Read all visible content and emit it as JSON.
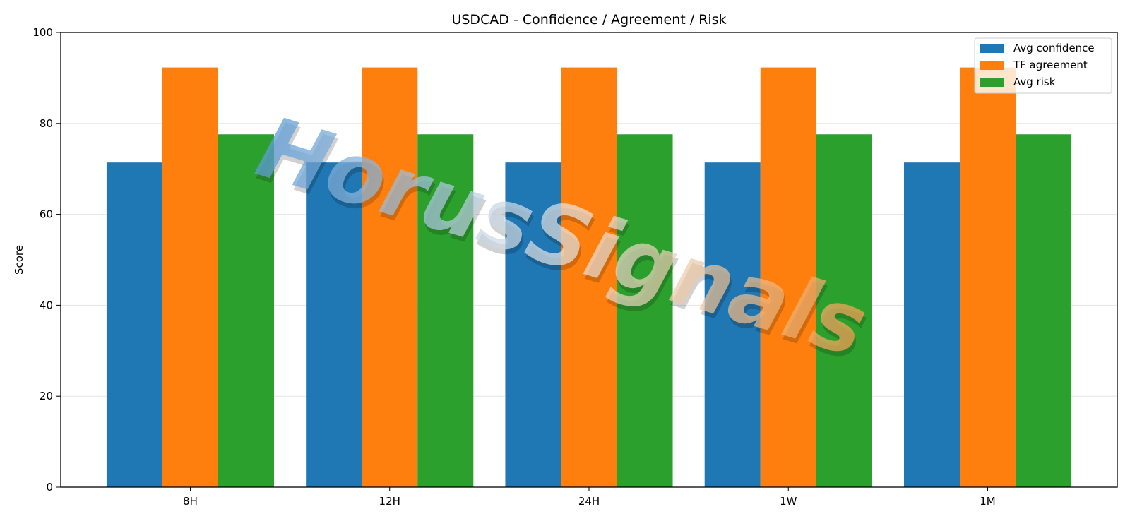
{
  "chart_data": {
    "type": "bar",
    "title": "USDCAD - Confidence / Agreement / Risk",
    "xlabel": "",
    "ylabel": "Score",
    "ylim": [
      0,
      100
    ],
    "yticks": [
      0,
      20,
      40,
      60,
      80,
      100
    ],
    "categories": [
      "8H",
      "12H",
      "24H",
      "1W",
      "1M"
    ],
    "series": [
      {
        "name": "Avg confidence",
        "color": "#1f77b4",
        "values": [
          71.4,
          71.4,
          71.4,
          71.4,
          71.4
        ]
      },
      {
        "name": "TF agreement",
        "color": "#ff7f0e",
        "values": [
          92.3,
          92.3,
          92.3,
          92.3,
          92.3
        ]
      },
      {
        "name": "Avg risk",
        "color": "#2ca02c",
        "values": [
          77.6,
          77.6,
          77.6,
          77.6,
          77.6
        ]
      }
    ],
    "grid": "horizontal",
    "legend_position": "top-right"
  },
  "watermark": {
    "text": "HorusSignals"
  }
}
